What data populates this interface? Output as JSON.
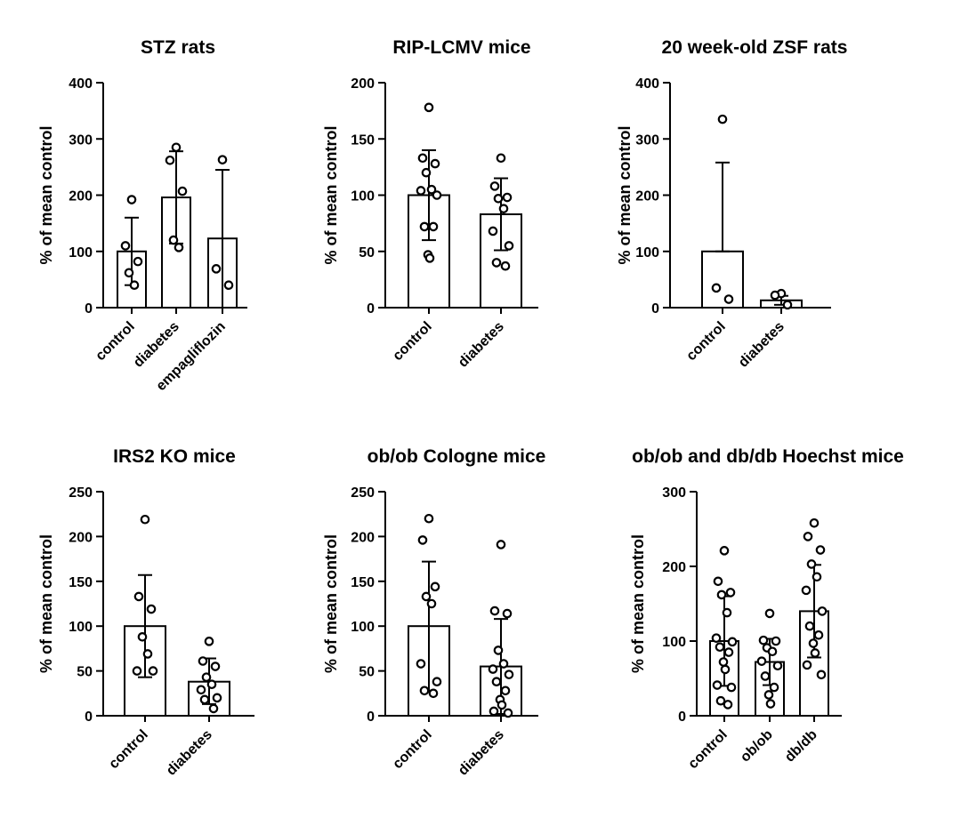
{
  "chart_data": [
    {
      "type": "bar",
      "title": "STZ rats",
      "ylabel": "% of mean control",
      "ylim": [
        0,
        400
      ],
      "yticks": [
        "0",
        "100",
        "200",
        "300",
        "400"
      ],
      "categories": [
        "control",
        "diabetes",
        "empagliflozin"
      ],
      "means": [
        100,
        196,
        123
      ],
      "errors": [
        [
          40,
          160
        ],
        [
          114,
          278
        ],
        [
          0,
          245
        ]
      ],
      "points": [
        [
          192,
          110,
          82,
          62,
          40
        ],
        [
          285,
          262,
          207,
          120,
          107
        ],
        [
          263,
          69,
          40
        ]
      ]
    },
    {
      "type": "bar",
      "title": "RIP-LCMV mice",
      "ylabel": "% of mean control",
      "ylim": [
        0,
        200
      ],
      "yticks": [
        "0",
        "50",
        "100",
        "150",
        "200"
      ],
      "categories": [
        "control",
        "diabetes"
      ],
      "means": [
        100,
        83
      ],
      "errors": [
        [
          60,
          140
        ],
        [
          51,
          115
        ]
      ],
      "points": [
        [
          178,
          133,
          128,
          120,
          105,
          104,
          100,
          72,
          72,
          47,
          44
        ],
        [
          133,
          108,
          98,
          97,
          88,
          68,
          55,
          40,
          37
        ]
      ]
    },
    {
      "type": "bar",
      "title": "20 week-old ZSF rats",
      "ylabel": "% of mean control",
      "ylim": [
        0,
        400
      ],
      "yticks": [
        "0",
        "100",
        "200",
        "300",
        "400"
      ],
      "categories": [
        "control",
        "diabetes"
      ],
      "means": [
        100,
        13
      ],
      "errors": [
        [
          100,
          258
        ],
        [
          5,
          21
        ]
      ],
      "points": [
        [
          335,
          35,
          15
        ],
        [
          25,
          22,
          5
        ]
      ]
    },
    {
      "type": "bar",
      "title": "IRS2 KO mice",
      "ylabel": "% of mean control",
      "ylim": [
        0,
        250
      ],
      "yticks": [
        "0",
        "50",
        "100",
        "150",
        "200",
        "250"
      ],
      "categories": [
        "control",
        "diabetes"
      ],
      "means": [
        100,
        38
      ],
      "errors": [
        [
          43,
          157
        ],
        [
          13,
          64
        ]
      ],
      "points": [
        [
          219,
          133,
          119,
          88,
          69,
          50,
          50
        ],
        [
          83,
          61,
          55,
          43,
          35,
          29,
          20,
          18,
          8
        ]
      ]
    },
    {
      "type": "bar",
      "title": "ob/ob Cologne mice",
      "ylabel": "% of mean control",
      "ylim": [
        0,
        250
      ],
      "yticks": [
        "0",
        "50",
        "100",
        "150",
        "200",
        "250"
      ],
      "categories": [
        "control",
        "diabetes"
      ],
      "means": [
        100,
        55
      ],
      "errors": [
        [
          28,
          172
        ],
        [
          2,
          108
        ]
      ],
      "points": [
        [
          220,
          196,
          144,
          133,
          125,
          58,
          38,
          28,
          25
        ],
        [
          191,
          117,
          114,
          73,
          58,
          52,
          46,
          38,
          28,
          18,
          12,
          5,
          3
        ]
      ]
    },
    {
      "type": "bar",
      "title": "ob/ob and db/db Hoechst mice",
      "ylabel": "% of mean control",
      "ylim": [
        0,
        300
      ],
      "yticks": [
        "0",
        "100",
        "200",
        "300"
      ],
      "categories": [
        "control",
        "ob/ob",
        "db/db"
      ],
      "means": [
        100,
        72,
        140
      ],
      "errors": [
        [
          40,
          160
        ],
        [
          41,
          103
        ],
        [
          78,
          202
        ]
      ],
      "points": [
        [
          221,
          180,
          165,
          162,
          138,
          104,
          99,
          92,
          85,
          72,
          62,
          41,
          38,
          20,
          15
        ],
        [
          137,
          101,
          100,
          91,
          86,
          73,
          67,
          53,
          38,
          28,
          16
        ],
        [
          258,
          240,
          222,
          203,
          186,
          168,
          140,
          120,
          108,
          97,
          84,
          68,
          55
        ]
      ]
    }
  ]
}
